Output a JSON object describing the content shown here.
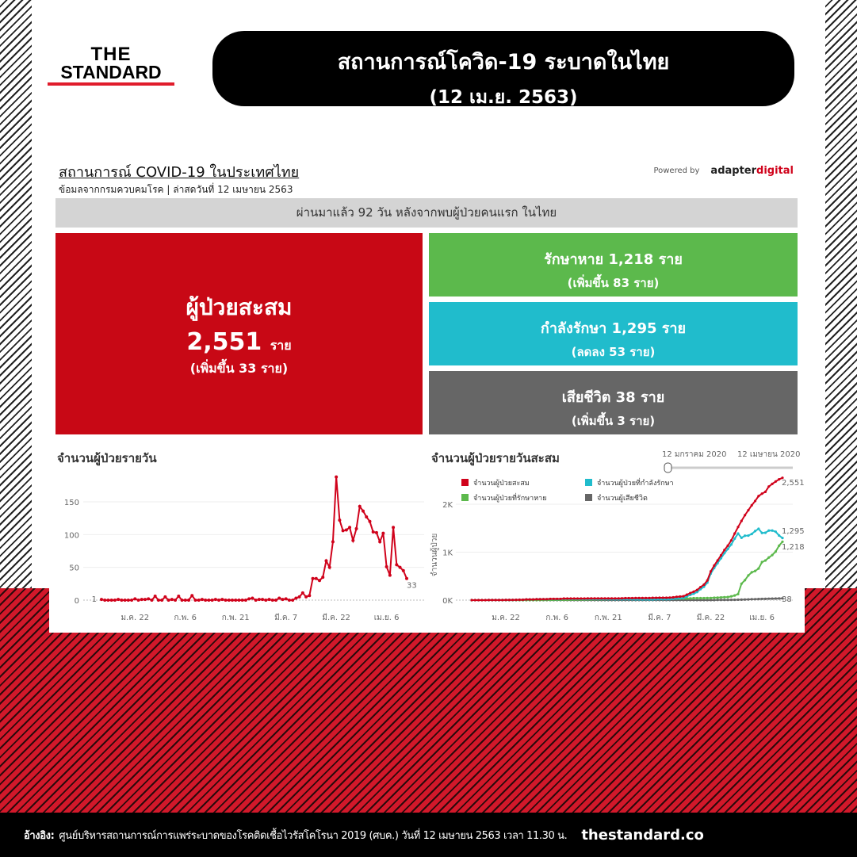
{
  "logo": {
    "line1": "THE",
    "line2": "STANDARD"
  },
  "header": {
    "title": "สถานการณ์โควิด-19 ระบาดในไทย",
    "date": "(12 เม.ย. 2563)"
  },
  "dashboard": {
    "title": "สถานการณ์ COVID-19 ในประเทศไทย",
    "subtitle": "ข้อมลจากกรมควบคมโรค | ล่าสดวันที่ 12 เมษายน 2563",
    "powered_by": "Powered by",
    "brand_a": "adapter",
    "brand_b": "digital",
    "banner": "ผ่านมาแล้ว 92 วัน หลังจากพบผู้ป่วยคนแรก ในไทย",
    "total": {
      "label": "ผู้ป่วยสะสม",
      "value": "2,551",
      "unit": "ราย",
      "change": "(เพิ่มขึ้น 33 ราย)",
      "color": "#c80815"
    },
    "recovered": {
      "label": "รักษาหาย 1,218 ราย",
      "change": "(เพิ่มขึ้น 83 ราย)",
      "color": "#5cb94c"
    },
    "active": {
      "label": "กำลังรักษา 1,295 ราย",
      "change": "(ลดลง 53 ราย)",
      "color": "#20bccc"
    },
    "deaths": {
      "label": "เสียชีวิต 38 ราย",
      "change": "(เพิ่มขึ้น 3 ราย)",
      "color": "#666666"
    }
  },
  "slider": {
    "start": "12 มกราคม 2020",
    "end": "12 เมษายน 2020"
  },
  "chart_data": [
    {
      "type": "line",
      "title": "จำนวนผู้ป่วยรายวัน",
      "x_start": "2020-01-12",
      "x_end": "2020-04-12",
      "x_ticks": [
        "ม.ค. 22",
        "ก.พ. 6",
        "ก.พ. 21",
        "มี.ค. 7",
        "มี.ค. 22",
        "เม.ย. 6"
      ],
      "y_ticks": [
        "0",
        "50",
        "100",
        "150"
      ],
      "ylim": [
        0,
        200
      ],
      "grid": true,
      "first_label": "1",
      "last_label": "33",
      "color": "#d0021b",
      "values": [
        1,
        0,
        0,
        0,
        0,
        1,
        0,
        0,
        0,
        0,
        2,
        0,
        1,
        1,
        2,
        0,
        6,
        0,
        0,
        5,
        0,
        1,
        0,
        6,
        0,
        0,
        0,
        7,
        0,
        0,
        1,
        0,
        0,
        0,
        1,
        0,
        1,
        0,
        0,
        0,
        0,
        0,
        0,
        0,
        2,
        3,
        0,
        1,
        1,
        0,
        1,
        0,
        0,
        3,
        1,
        2,
        0,
        0,
        3,
        5,
        11,
        5,
        7,
        33,
        33,
        30,
        35,
        60,
        50,
        89,
        188,
        122,
        106,
        107,
        111,
        91,
        109,
        143,
        136,
        127,
        120,
        104,
        103,
        89,
        102,
        51,
        38,
        111,
        54,
        50,
        45,
        33
      ]
    },
    {
      "type": "line",
      "title": "จำนวนผู้ป่วยรายวันสะสม",
      "ylabel": "จำนวนผู้ป่วย",
      "x_start": "2020-01-12",
      "x_end": "2020-04-12",
      "x_ticks": [
        "ม.ค. 22",
        "ก.พ. 6",
        "ก.พ. 21",
        "มี.ค. 7",
        "มี.ค. 22",
        "เม.ย. 6"
      ],
      "y_ticks": [
        "0K",
        "1K",
        "2K"
      ],
      "ylim": [
        0,
        2600
      ],
      "grid": true,
      "series": [
        {
          "name": "จำนวนผู้ป่วยสะสม",
          "color": "#d0021b",
          "end_label": "2,551",
          "derived_from": "cumulative of daily"
        },
        {
          "name": "จำนวนผู้ป่วยที่กำลังรักษา",
          "color": "#20bccc",
          "end_label": "1,295",
          "derived_from": "cumulative - recovered - deaths"
        },
        {
          "name": "จำนวนผู้ป่วยที่รักษาหาย",
          "color": "#5cb94c",
          "end_label": "1,218",
          "values": [
            0,
            0,
            0,
            0,
            0,
            0,
            0,
            0,
            0,
            0,
            0,
            0,
            0,
            0,
            0,
            0,
            0,
            0,
            0,
            0,
            1,
            2,
            2,
            3,
            4,
            5,
            5,
            6,
            7,
            8,
            9,
            10,
            10,
            11,
            12,
            13,
            14,
            15,
            15,
            16,
            17,
            18,
            19,
            20,
            21,
            22,
            24,
            26,
            28,
            28,
            28,
            28,
            31,
            31,
            31,
            31,
            31,
            31,
            31,
            31,
            31,
            31,
            34,
            35,
            35,
            42,
            42,
            42,
            42,
            44,
            44,
            51,
            52,
            57,
            61,
            64,
            79,
            97,
            127,
            342,
            416,
            514,
            580,
            607,
            659,
            793,
            826,
            888,
            940,
            1013,
            1135,
            1218
          ]
        },
        {
          "name": "จำนวนผู้เสียชีวิต",
          "color": "#666666",
          "end_label": "38",
          "values": [
            0,
            0,
            0,
            0,
            0,
            0,
            0,
            0,
            0,
            0,
            0,
            0,
            0,
            0,
            0,
            0,
            0,
            0,
            0,
            0,
            0,
            0,
            0,
            0,
            0,
            0,
            0,
            0,
            0,
            0,
            0,
            0,
            0,
            0,
            0,
            0,
            0,
            0,
            0,
            0,
            0,
            0,
            0,
            0,
            0,
            0,
            0,
            0,
            0,
            1,
            1,
            1,
            1,
            1,
            1,
            1,
            1,
            1,
            1,
            1,
            1,
            1,
            1,
            1,
            1,
            1,
            1,
            1,
            1,
            1,
            1,
            1,
            4,
            4,
            5,
            5,
            6,
            7,
            9,
            10,
            12,
            15,
            19,
            20,
            23,
            26,
            27,
            30,
            32,
            33,
            35,
            38
          ]
        }
      ]
    }
  ],
  "footer": {
    "ref_label": "อ้างอิง:",
    "ref": "ศูนย์บริหารสถานการณ์การแพร่ระบาดของโรคติดเชื้อไวรัสโคโรนา 2019 (ศบค.) วันที่ 12 เมษายน 2563 เวลา 11.30 น.",
    "site": "thestandard.co"
  }
}
